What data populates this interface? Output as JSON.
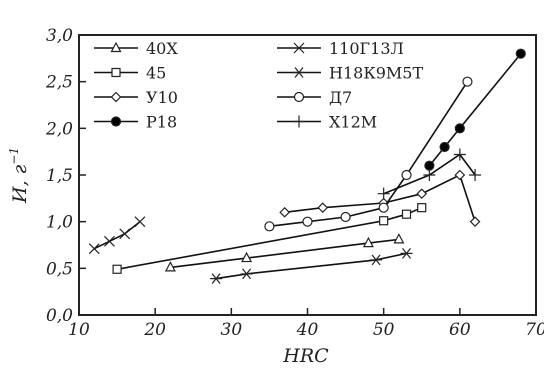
{
  "chart_data": {
    "type": "line",
    "title": "",
    "xlabel": "HRC",
    "ylabel": "И, г",
    "ylabel_exponent": "−1",
    "xlim": [
      10,
      70
    ],
    "ylim": [
      0.0,
      3.0
    ],
    "x_ticks": [
      10,
      20,
      30,
      40,
      50,
      60,
      70
    ],
    "x_tick_labels": [
      "10",
      "20",
      "30",
      "40",
      "50",
      "60",
      "70"
    ],
    "y_ticks": [
      0.0,
      0.5,
      1.0,
      1.5,
      2.0,
      2.5,
      3.0
    ],
    "y_tick_labels": [
      "0,0",
      "0,5",
      "1,0",
      "1,5",
      "2,0",
      "2,5",
      "3,0"
    ],
    "grid": false,
    "legend_position": "top-left",
    "series": [
      {
        "name": "40Х",
        "marker": "triangle-open",
        "points": [
          [
            22,
            0.51
          ],
          [
            32,
            0.61
          ],
          [
            48,
            0.77
          ],
          [
            52,
            0.81
          ]
        ]
      },
      {
        "name": "110Г13Л",
        "marker": "x",
        "points": [
          [
            12,
            0.71
          ],
          [
            14,
            0.79
          ],
          [
            16,
            0.87
          ],
          [
            18,
            1.0
          ]
        ]
      },
      {
        "name": "45",
        "marker": "square-open",
        "points": [
          [
            15,
            0.49
          ],
          [
            50,
            1.01
          ],
          [
            53,
            1.08
          ],
          [
            55,
            1.15
          ]
        ]
      },
      {
        "name": "Н18К9М5Т",
        "marker": "asterisk",
        "points": [
          [
            28,
            0.39
          ],
          [
            32,
            0.44
          ],
          [
            49,
            0.59
          ],
          [
            53,
            0.66
          ]
        ]
      },
      {
        "name": "У10",
        "marker": "diamond-open",
        "points": [
          [
            37,
            1.1
          ],
          [
            42,
            1.15
          ],
          [
            50,
            1.2
          ],
          [
            55,
            1.3
          ],
          [
            60,
            1.5
          ],
          [
            62,
            1.0
          ]
        ]
      },
      {
        "name": "Д7",
        "marker": "circle-open",
        "points": [
          [
            35,
            0.95
          ],
          [
            40,
            1.0
          ],
          [
            45,
            1.05
          ],
          [
            50,
            1.15
          ],
          [
            53,
            1.5
          ],
          [
            61,
            2.5
          ]
        ]
      },
      {
        "name": "Р18",
        "marker": "circle-filled",
        "points": [
          [
            56,
            1.6
          ],
          [
            58,
            1.8
          ],
          [
            60,
            2.0
          ],
          [
            68,
            2.8
          ]
        ]
      },
      {
        "name": "Х12М",
        "marker": "plus",
        "points": [
          [
            50,
            1.3
          ],
          [
            56,
            1.5
          ],
          [
            60,
            1.72
          ],
          [
            62,
            1.5
          ]
        ]
      }
    ]
  }
}
